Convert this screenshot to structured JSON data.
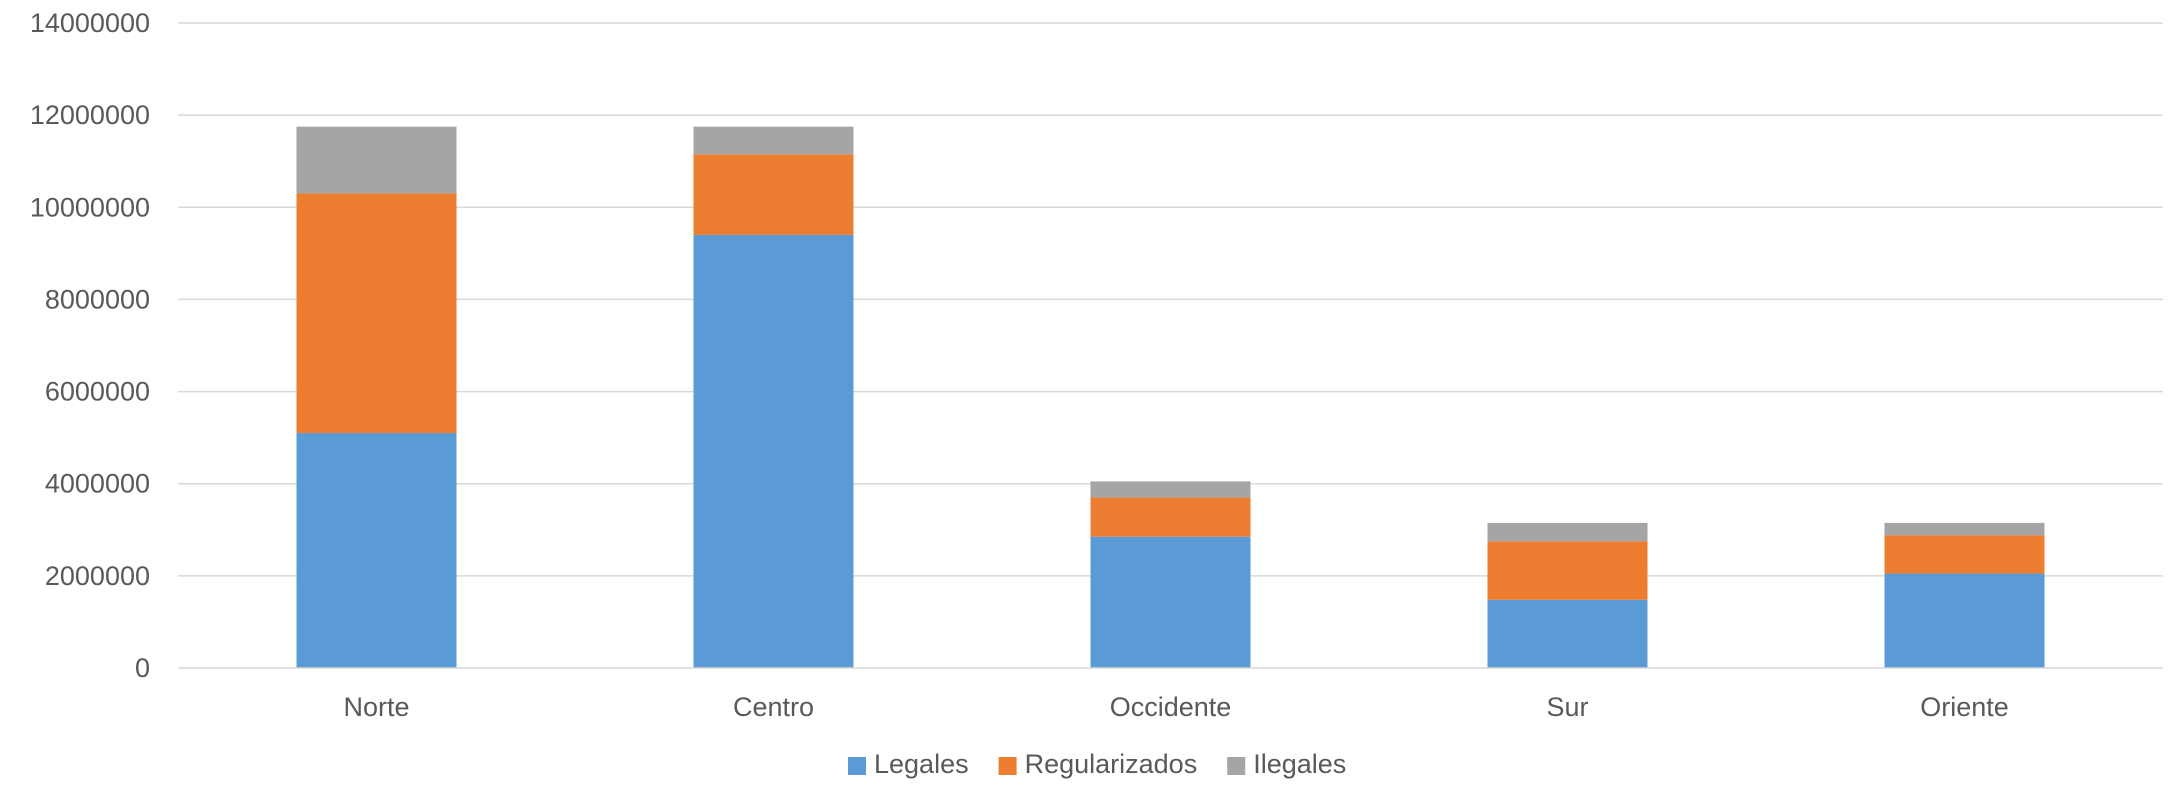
{
  "chart_data": {
    "type": "bar",
    "stacked": true,
    "categories": [
      "Norte",
      "Centro",
      "Occidente",
      "Sur",
      "Oriente"
    ],
    "series": [
      {
        "name": "Legales",
        "color": "#5B9BD5",
        "values": [
          5100000,
          9400000,
          2850000,
          1480000,
          2050000
        ]
      },
      {
        "name": "Regularizados",
        "color": "#ED7D31",
        "values": [
          5200000,
          1750000,
          850000,
          1270000,
          830000
        ]
      },
      {
        "name": "Ilegales",
        "color": "#A5A5A5",
        "values": [
          1450000,
          600000,
          350000,
          400000,
          270000
        ]
      }
    ],
    "ylim": [
      0,
      14000000
    ],
    "yticks": [
      "0",
      "2000000",
      "4000000",
      "6000000",
      "8000000",
      "10000000",
      "12000000",
      "14000000"
    ],
    "grid": true,
    "legend_position": "bottom",
    "title": "",
    "xlabel": "",
    "ylabel": ""
  }
}
